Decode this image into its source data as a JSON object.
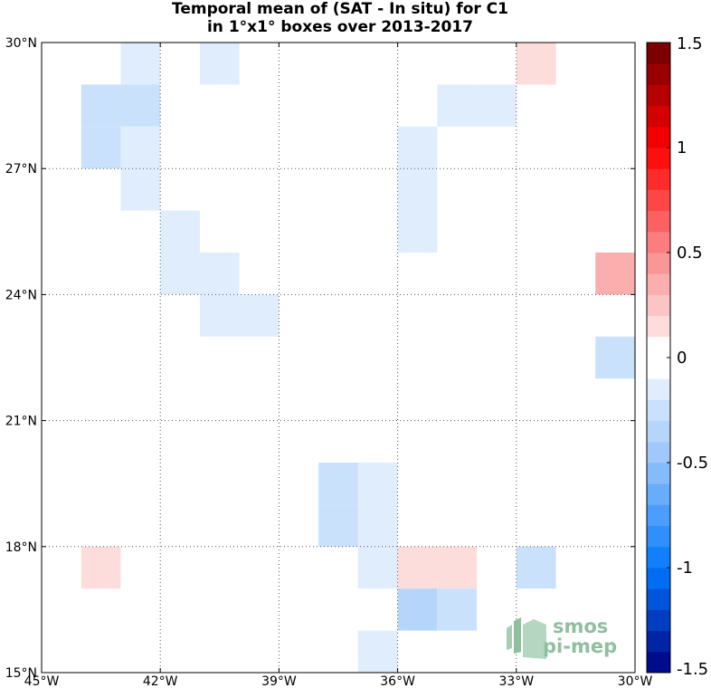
{
  "chart_data": {
    "type": "heatmap",
    "title_lines": [
      "Temporal mean of (SAT - In situ) for C1",
      "in 1°x1° boxes over 2013-2017"
    ],
    "xlim": [
      -45,
      -30
    ],
    "ylim": [
      15,
      30
    ],
    "x_ticks": [
      {
        "value": -45,
        "label": "45°W"
      },
      {
        "value": -42,
        "label": "42°W"
      },
      {
        "value": -39,
        "label": "39°W"
      },
      {
        "value": -36,
        "label": "36°W"
      },
      {
        "value": -33,
        "label": "33°W"
      },
      {
        "value": -30,
        "label": "30°W"
      }
    ],
    "y_ticks": [
      {
        "value": 15,
        "label": "15°N"
      },
      {
        "value": 18,
        "label": "18°N"
      },
      {
        "value": 21,
        "label": "21°N"
      },
      {
        "value": 24,
        "label": "24°N"
      },
      {
        "value": 27,
        "label": "27°N"
      },
      {
        "value": 30,
        "label": "30°N"
      }
    ],
    "grid": true,
    "colorbar": {
      "range": [
        -1.5,
        1.5
      ],
      "step": 0.1,
      "ticks": [
        {
          "value": 1.5,
          "label": "1.5"
        },
        {
          "value": 1,
          "label": "1"
        },
        {
          "value": 0.5,
          "label": "0.5"
        },
        {
          "value": 0,
          "label": "0"
        },
        {
          "value": -0.5,
          "label": "-0.5"
        },
        {
          "value": -1,
          "label": "-1"
        },
        {
          "value": -1.5,
          "label": "-1.5"
        }
      ]
    },
    "cells": [
      {
        "lon": -43,
        "lat": 29,
        "value": -0.15
      },
      {
        "lon": -41,
        "lat": 29,
        "value": -0.15
      },
      {
        "lon": -33,
        "lat": 29,
        "value": 0.15
      },
      {
        "lon": -44,
        "lat": 28,
        "value": -0.25
      },
      {
        "lon": -43,
        "lat": 28,
        "value": -0.25
      },
      {
        "lon": -35,
        "lat": 28,
        "value": -0.15
      },
      {
        "lon": -34,
        "lat": 28,
        "value": -0.15
      },
      {
        "lon": -44,
        "lat": 27,
        "value": -0.25
      },
      {
        "lon": -43,
        "lat": 27,
        "value": -0.15
      },
      {
        "lon": -36,
        "lat": 27,
        "value": -0.15
      },
      {
        "lon": -43,
        "lat": 26,
        "value": -0.15
      },
      {
        "lon": -36,
        "lat": 26,
        "value": -0.15
      },
      {
        "lon": -42,
        "lat": 25,
        "value": -0.15
      },
      {
        "lon": -36,
        "lat": 25,
        "value": -0.15
      },
      {
        "lon": -42,
        "lat": 24,
        "value": -0.15
      },
      {
        "lon": -41,
        "lat": 24,
        "value": -0.15
      },
      {
        "lon": -31,
        "lat": 24,
        "value": 0.35
      },
      {
        "lon": -41,
        "lat": 23,
        "value": -0.15
      },
      {
        "lon": -40,
        "lat": 23,
        "value": -0.15
      },
      {
        "lon": -31,
        "lat": 22,
        "value": -0.25
      },
      {
        "lon": -38,
        "lat": 19,
        "value": -0.25
      },
      {
        "lon": -37,
        "lat": 19,
        "value": -0.15
      },
      {
        "lon": -38,
        "lat": 18,
        "value": -0.25
      },
      {
        "lon": -37,
        "lat": 18,
        "value": -0.15
      },
      {
        "lon": -44,
        "lat": 17,
        "value": 0.15
      },
      {
        "lon": -37,
        "lat": 17,
        "value": -0.15
      },
      {
        "lon": -36,
        "lat": 17,
        "value": 0.15
      },
      {
        "lon": -35,
        "lat": 17,
        "value": 0.15
      },
      {
        "lon": -33,
        "lat": 17,
        "value": -0.25
      },
      {
        "lon": -36,
        "lat": 16,
        "value": -0.35
      },
      {
        "lon": -35,
        "lat": 16,
        "value": -0.25
      },
      {
        "lon": -37,
        "lat": 15,
        "value": -0.15
      }
    ]
  },
  "logo": {
    "line1": "smos",
    "line2": "pi-mep",
    "color": "#8fbf9f"
  },
  "colors": {
    "grid": "#555555",
    "axes": "#000000"
  }
}
